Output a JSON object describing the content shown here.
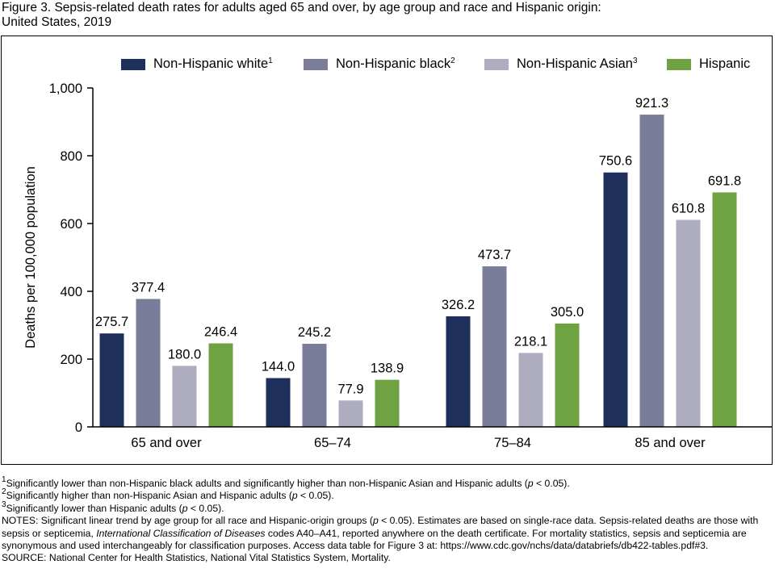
{
  "figure": {
    "title_line1": "Figure 3. Sepsis-related death rates for adults aged 65 and over, by age group and race and Hispanic origin:",
    "title_line2": "United States, 2019"
  },
  "colors": {
    "Non-Hispanic white": "#1f2f5b",
    "Non-Hispanic black": "#7a7d9a",
    "Non-Hispanic Asian": "#aeadc0",
    "Hispanic": "#6fa243"
  },
  "legend": [
    {
      "label": "Non-Hispanic white",
      "sup": "1",
      "color": "#1f2f5b"
    },
    {
      "label": "Non-Hispanic black",
      "sup": "2",
      "color": "#7a7d9a"
    },
    {
      "label": "Non-Hispanic Asian",
      "sup": "3",
      "color": "#aeadc0"
    },
    {
      "label": "Hispanic",
      "sup": "",
      "color": "#6fa243"
    }
  ],
  "chart_data": {
    "type": "bar",
    "categories": [
      "65 and over",
      "65–74",
      "75–84",
      "85 and over"
    ],
    "series": [
      {
        "name": "Non-Hispanic white",
        "values": [
          275.7,
          144.0,
          326.2,
          750.6
        ]
      },
      {
        "name": "Non-Hispanic black",
        "values": [
          377.4,
          245.2,
          473.7,
          921.3
        ]
      },
      {
        "name": "Non-Hispanic Asian",
        "values": [
          180.0,
          77.9,
          218.1,
          610.8
        ]
      },
      {
        "name": "Hispanic",
        "values": [
          246.4,
          138.9,
          305.0,
          691.8
        ]
      }
    ],
    "value_labels": [
      [
        "275.7",
        "144.0",
        "326.2",
        "750.6"
      ],
      [
        "377.4",
        "245.2",
        "473.7",
        "921.3"
      ],
      [
        "180.0",
        "77.9",
        "218.1",
        "610.8"
      ],
      [
        "246.4",
        "138.9",
        "305.0",
        "691.8"
      ]
    ],
    "ylabel": "Deaths per 100,000 population",
    "xlabel": "",
    "ylim": [
      0,
      1000
    ],
    "yticks": [
      0,
      200,
      400,
      600,
      800,
      1000
    ],
    "ytick_labels": [
      "0",
      "200",
      "400",
      "600",
      "800",
      "1,000"
    ],
    "grid": false,
    "legend_position": "top"
  },
  "notes": {
    "fn1_sup": "1",
    "fn1_a": "Significantly lower than non-Hispanic black adults and significantly higher than non-Hispanic Asian and Hispanic adults (",
    "fn1_p": "p",
    "fn1_b": " < 0.05).",
    "fn2_sup": "2",
    "fn2_a": "Significantly higher than non-Hispanic Asian and Hispanic adults (",
    "fn2_p": "p",
    "fn2_b": " < 0.05).",
    "fn3_sup": "3",
    "fn3_a": "Significantly lower than Hispanic adults (",
    "fn3_p": "p",
    "fn3_b": " < 0.05).",
    "notes_a": "NOTES: Significant linear trend by age group for all race and Hispanic-origin groups (",
    "notes_p": "p",
    "notes_b": " < 0.05). Estimates are based on single-race data. Sepsis-related deaths are those with sepsis or septicemia, ",
    "notes_italic": "International Classification of Diseases",
    "notes_c": " codes A40–A41, reported anywhere on the death certificate. For mortality statistics, sepsis and septicemia are synonymous and used interchangeably for classification purposes. Access data table for Figure 3 at: https://www.cdc.gov/nchs/data/databriefs/db422-tables.pdf#3.",
    "source": "SOURCE: National Center for Health Statistics, National Vital Statistics System, Mortality."
  }
}
